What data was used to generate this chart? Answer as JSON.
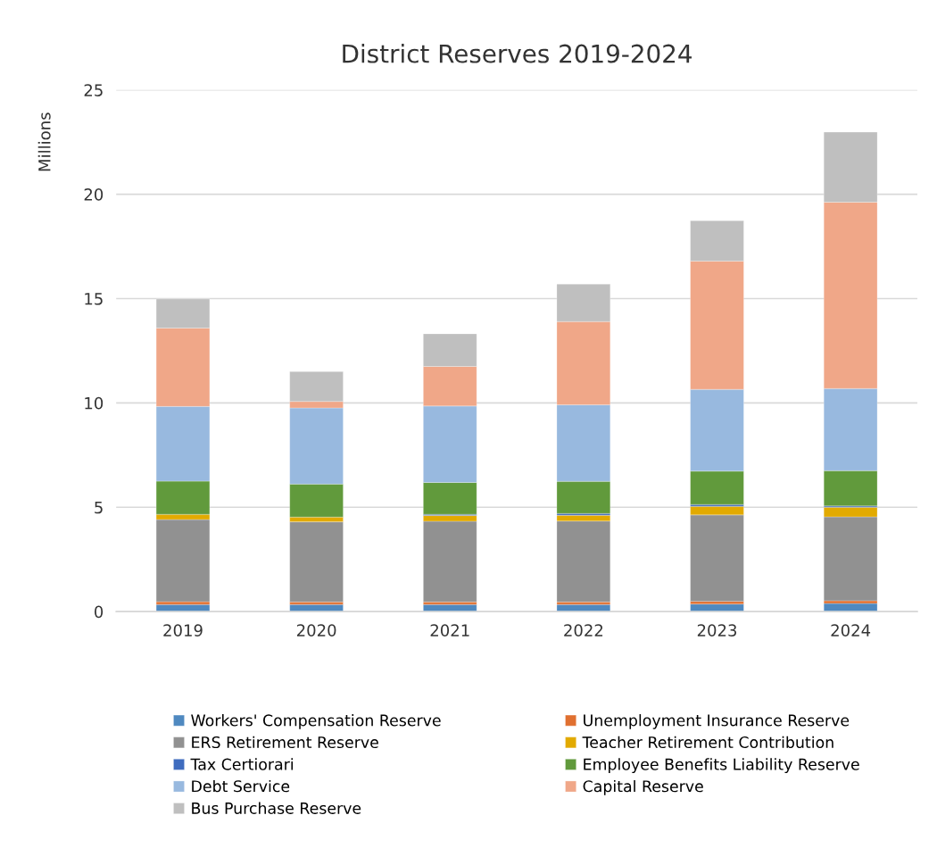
{
  "chart_data": {
    "type": "bar",
    "title": "District Reserves 2019-2024",
    "ylabel": "Millions",
    "categories": [
      "2019",
      "2020",
      "2021",
      "2022",
      "2023",
      "2024"
    ],
    "stacked": true,
    "ylim": [
      0,
      25
    ],
    "yticks": [
      0,
      5,
      10,
      15,
      20,
      25
    ],
    "grid": "y",
    "legend": "bottom",
    "series": [
      {
        "name": "Workers' Compensation Reserve",
        "color": "#4f89c0",
        "values": [
          0.34,
          0.34,
          0.34,
          0.34,
          0.36,
          0.39
        ]
      },
      {
        "name": "Unemployment Insurance Reserve",
        "color": "#e07030",
        "values": [
          0.13,
          0.12,
          0.12,
          0.12,
          0.13,
          0.13
        ]
      },
      {
        "name": "ERS Retirement Reserve",
        "color": "#919191",
        "values": [
          3.94,
          3.84,
          3.87,
          3.88,
          4.14,
          4.02
        ]
      },
      {
        "name": "Teacher Retirement Contribution",
        "color": "#e2aa00",
        "values": [
          0.25,
          0.23,
          0.27,
          0.27,
          0.41,
          0.46
        ]
      },
      {
        "name": "Tax Certiorari",
        "color": "#3f6cbf",
        "values": [
          null,
          null,
          0.06,
          0.09,
          0.09,
          0.06
        ]
      },
      {
        "name": "Employee Benefits Liability Reserve",
        "color": "#619a3c",
        "values": [
          1.59,
          1.58,
          1.53,
          1.54,
          1.6,
          1.69
        ]
      },
      {
        "name": "Debt Service",
        "color": "#98b9df",
        "values": [
          3.58,
          3.65,
          3.66,
          3.67,
          3.92,
          3.94
        ]
      },
      {
        "name": "Capital Reserve",
        "color": "#f0a788",
        "values": [
          3.76,
          0.31,
          1.9,
          3.99,
          6.15,
          8.93
        ]
      },
      {
        "name": "Bus Purchase Reserve",
        "color": "#bfbfbf",
        "values": [
          1.39,
          1.43,
          1.56,
          1.79,
          1.93,
          3.36
        ]
      }
    ]
  }
}
